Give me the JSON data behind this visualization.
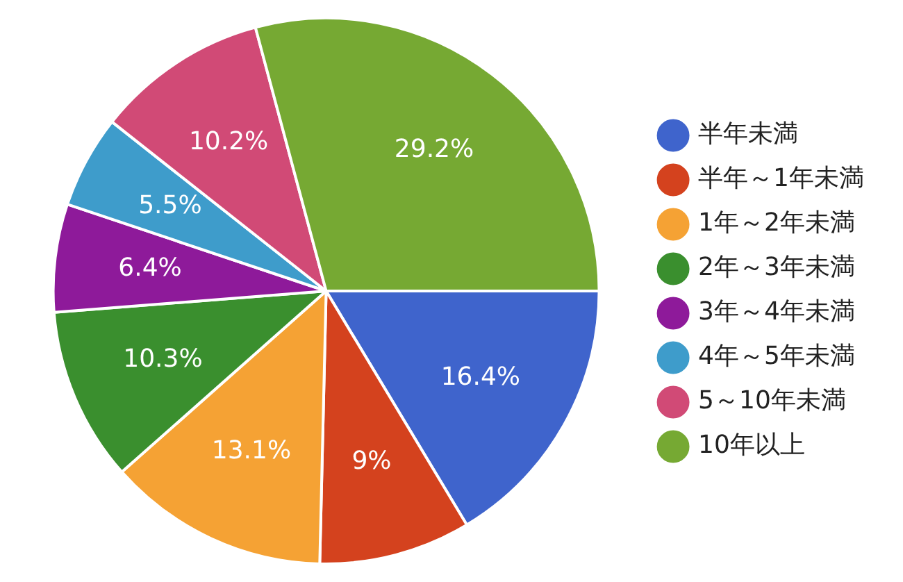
{
  "chart_data": {
    "type": "pie",
    "categories": [
      "半年未満",
      "半年～1年未満",
      "1年～2年未満",
      "2年～3年未満",
      "3年～4年未満",
      "4年～5年未満",
      "5～10年未満",
      "10年以上"
    ],
    "values": [
      16.4,
      9,
      13.1,
      10.3,
      6.4,
      5.5,
      10.2,
      29.2
    ],
    "value_labels": [
      "16.4%",
      "9%",
      "13.1%",
      "10.3%",
      "6.4%",
      "5.5%",
      "10.2%",
      "29.2%"
    ],
    "colors": [
      "#3f64cc",
      "#d4421e",
      "#f5a234",
      "#3a8f2e",
      "#8e1a9a",
      "#3e9ccb",
      "#d14a76",
      "#76a933"
    ],
    "legend": "right"
  }
}
